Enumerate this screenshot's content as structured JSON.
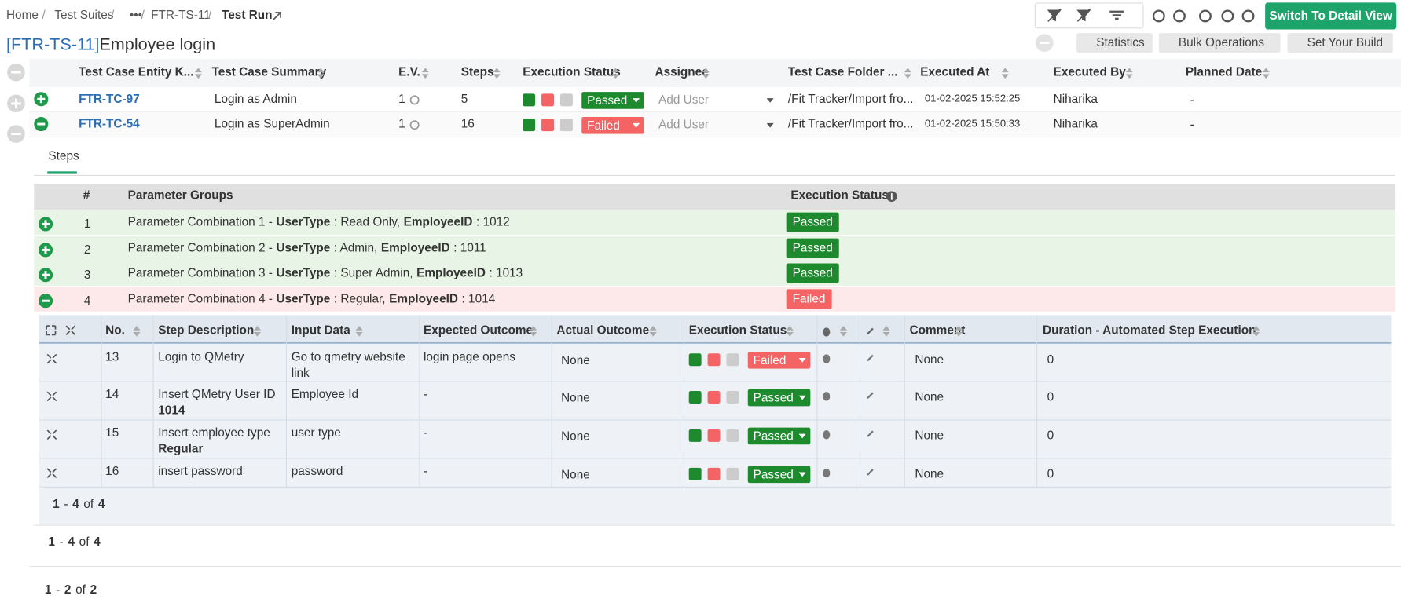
{
  "breadcrumb": [
    "Home",
    "Test Suites",
    "•••",
    "FTR-TS-11",
    "Test Run"
  ],
  "toolbar": {
    "switch_view": "Switch To Detail View",
    "statistics": "Statistics",
    "bulk_operations": "Bulk Operations",
    "set_build": "Set Your Build"
  },
  "title": {
    "key": "[FTR-TS-11]",
    "name": "Employee login"
  },
  "main_table": {
    "columns": [
      "Test Case Entity K...",
      "Test Case Summary",
      "E.V.",
      "Steps",
      "Execution Status",
      "Assignee",
      "Test Case Folder ...",
      "Executed At",
      "Executed By",
      "Planned Date"
    ],
    "rows": [
      {
        "key": "FTR-TC-97",
        "summary": "Login as Admin",
        "ev": "1",
        "steps": "5",
        "status": "Passed",
        "assignee": "Add User",
        "folder": "/Fit Tracker/Import fro...",
        "executed_at": "01-02-2025 15:52:25",
        "executed_by": "Niharika",
        "planned": "-"
      },
      {
        "key": "FTR-TC-54",
        "summary": "Login as SuperAdmin",
        "ev": "1",
        "steps": "16",
        "status": "Failed",
        "assignee": "Add User",
        "folder": "/Fit Tracker/Import fro...",
        "executed_at": "01-02-2025 15:50:33",
        "executed_by": "Niharika",
        "planned": "-"
      }
    ]
  },
  "tab": "Steps",
  "param_table": {
    "columns": [
      "#",
      "Parameter Groups",
      "Execution Status"
    ],
    "rows": [
      {
        "num": "1",
        "label": "Parameter Combination 1 -",
        "k1": "UserType",
        "v1": ": Read Only,",
        "k2": "EmployeeID",
        "v2": ": 1012",
        "status": "Passed"
      },
      {
        "num": "2",
        "label": "Parameter Combination 2 -",
        "k1": "UserType",
        "v1": ": Admin,",
        "k2": "EmployeeID",
        "v2": ": 1011",
        "status": "Passed"
      },
      {
        "num": "3",
        "label": "Parameter Combination 3 -",
        "k1": "UserType",
        "v1": ": Super Admin,",
        "k2": "EmployeeID",
        "v2": ": 1013",
        "status": "Passed"
      },
      {
        "num": "4",
        "label": "Parameter Combination 4 -",
        "k1": "UserType",
        "v1": ": Regular,",
        "k2": "EmployeeID",
        "v2": ": 1014",
        "status": "Failed"
      }
    ]
  },
  "step_table": {
    "columns": [
      "No.",
      "Step Description",
      "Input Data",
      "Expected Outcome",
      "Actual Outcome",
      "Execution Status",
      "Comment",
      "Duration - Automated Step Execution"
    ],
    "rows": [
      {
        "no": "13",
        "description": "Login to QMetry",
        "input": "Go to qmetry website link",
        "expected": "login page opens",
        "actual": "None",
        "status": "Failed",
        "comment": "None",
        "duration": "0"
      },
      {
        "no": "14",
        "description": "Insert QMetry User ID",
        "description_value": "1014",
        "input": "Employee Id",
        "expected": "-",
        "actual": "None",
        "status": "Passed",
        "comment": "None",
        "duration": "0"
      },
      {
        "no": "15",
        "description": "Insert employee type",
        "description_value": "Regular",
        "input": "user type",
        "expected": "-",
        "actual": "None",
        "status": "Passed",
        "comment": "None",
        "duration": "0"
      },
      {
        "no": "16",
        "description": "insert password",
        "input": "password",
        "expected": "-",
        "actual": "None",
        "status": "Passed",
        "comment": "None",
        "duration": "0"
      }
    ]
  },
  "pagination_steps": {
    "from": "1",
    "sep": "-",
    "to": "4",
    "of": "of",
    "total": "4"
  },
  "pagination_params": {
    "from": "1",
    "sep": "-",
    "to": "4",
    "of": "of",
    "total": "4"
  },
  "pagination_cases": {
    "from": "1",
    "sep": "-",
    "to": "2",
    "of": "of",
    "total": "2"
  }
}
